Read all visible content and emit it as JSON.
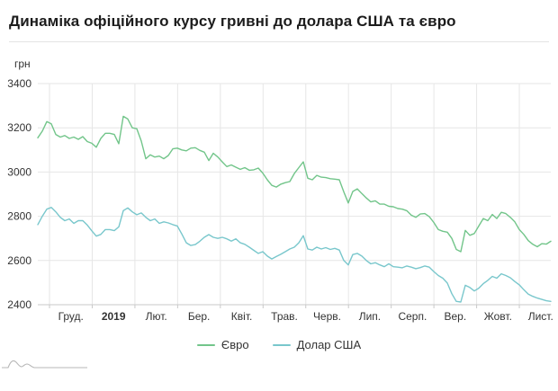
{
  "page": {
    "title": "Динаміка офіційного курсу гривні до долара США та євро"
  },
  "chart_data": {
    "type": "line",
    "title": "Динаміка офіційного курсу гривні до долара США та євро",
    "y_unit": "грн",
    "ylim": [
      2400,
      3400
    ],
    "y_ticks": [
      3400,
      3200,
      3000,
      2800,
      2600,
      2400
    ],
    "x_tick_labels": [
      "Груд.",
      "2019",
      "Лют.",
      "Бер.",
      "Квіт.",
      "Трав.",
      "Черв.",
      "Лип.",
      "Серп.",
      "Вер.",
      "Жовт.",
      "Лист."
    ],
    "x_tick_bold": "2019",
    "grid": true,
    "grid_color": "#e6e6e6",
    "axis_color": "#c9c9c9",
    "tick_color": "#333333",
    "legend_position": "bottom",
    "series": [
      {
        "name": "Євро",
        "color": "#72c58a",
        "values": [
          3155,
          3185,
          3228,
          3218,
          3170,
          3158,
          3165,
          3152,
          3158,
          3148,
          3160,
          3138,
          3130,
          3112,
          3152,
          3175,
          3175,
          3170,
          3128,
          3252,
          3240,
          3200,
          3196,
          3140,
          3060,
          3078,
          3068,
          3072,
          3060,
          3075,
          3105,
          3108,
          3100,
          3096,
          3108,
          3110,
          3098,
          3090,
          3052,
          3085,
          3068,
          3046,
          3025,
          3032,
          3022,
          3012,
          3020,
          3008,
          3010,
          3018,
          2995,
          2965,
          2940,
          2932,
          2945,
          2952,
          2957,
          2993,
          3020,
          3046,
          2972,
          2965,
          2985,
          2977,
          2975,
          2970,
          2968,
          2965,
          2910,
          2860,
          2912,
          2924,
          2903,
          2883,
          2865,
          2870,
          2855,
          2855,
          2845,
          2843,
          2835,
          2832,
          2825,
          2805,
          2795,
          2810,
          2812,
          2798,
          2772,
          2740,
          2732,
          2728,
          2700,
          2650,
          2640,
          2736,
          2714,
          2722,
          2756,
          2790,
          2780,
          2808,
          2790,
          2818,
          2812,
          2795,
          2775,
          2740,
          2718,
          2690,
          2673,
          2662,
          2676,
          2674,
          2687
        ]
      },
      {
        "name": "Долар США",
        "color": "#79c7cc",
        "values": [
          2762,
          2800,
          2832,
          2840,
          2820,
          2795,
          2780,
          2788,
          2768,
          2780,
          2780,
          2760,
          2734,
          2710,
          2718,
          2740,
          2740,
          2735,
          2752,
          2825,
          2838,
          2820,
          2807,
          2815,
          2795,
          2780,
          2788,
          2768,
          2775,
          2770,
          2762,
          2756,
          2720,
          2680,
          2668,
          2672,
          2687,
          2705,
          2717,
          2705,
          2700,
          2705,
          2698,
          2688,
          2698,
          2680,
          2673,
          2660,
          2646,
          2632,
          2640,
          2620,
          2607,
          2618,
          2628,
          2640,
          2652,
          2660,
          2680,
          2712,
          2652,
          2647,
          2660,
          2652,
          2658,
          2650,
          2655,
          2647,
          2600,
          2580,
          2627,
          2632,
          2620,
          2600,
          2585,
          2590,
          2580,
          2572,
          2585,
          2572,
          2570,
          2567,
          2575,
          2570,
          2563,
          2568,
          2575,
          2570,
          2550,
          2532,
          2520,
          2498,
          2450,
          2415,
          2412,
          2488,
          2478,
          2462,
          2475,
          2495,
          2510,
          2528,
          2520,
          2540,
          2532,
          2522,
          2505,
          2490,
          2468,
          2448,
          2438,
          2430,
          2424,
          2418,
          2415
        ]
      }
    ]
  },
  "footer": {
    "mini_icon": "area-chart-icon"
  }
}
